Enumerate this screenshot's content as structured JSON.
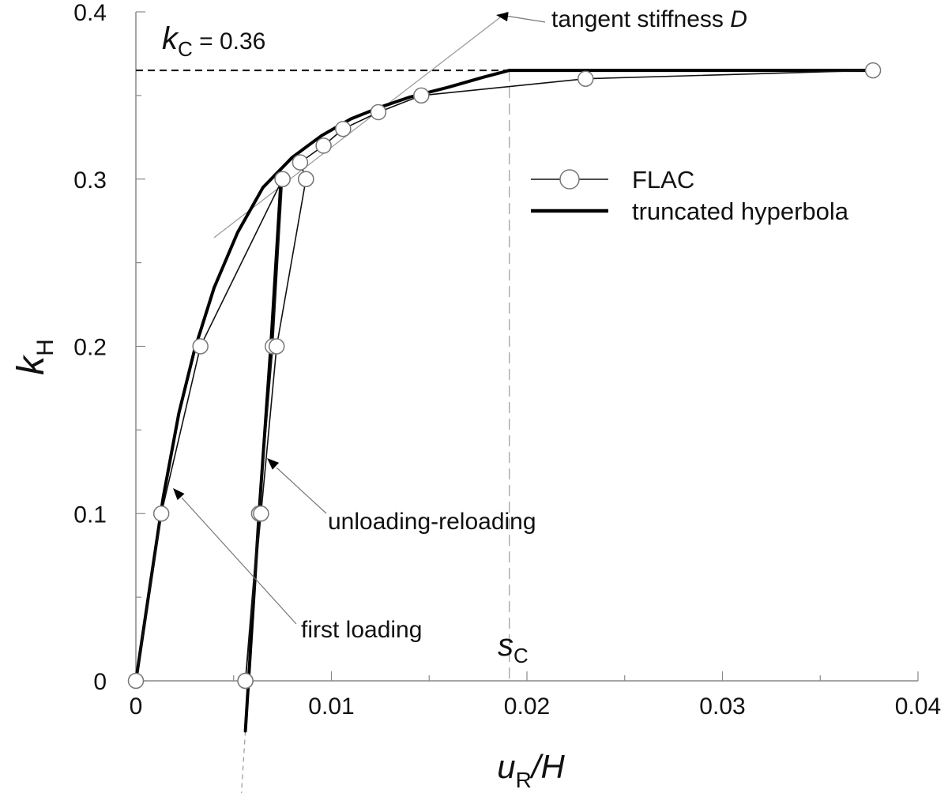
{
  "chart_data": {
    "type": "line",
    "xlabel": {
      "main": "u",
      "sub": "R",
      "rest": "/H"
    },
    "ylabel": {
      "main": "k",
      "sub": "H"
    },
    "xlim": [
      0,
      0.04
    ],
    "ylim": [
      0,
      0.4
    ],
    "x_ticks": [
      "0",
      "0.01",
      "0.02",
      "0.03",
      "0.04"
    ],
    "y_ticks": [
      "0",
      "0.1",
      "0.2",
      "0.3",
      "0.4"
    ],
    "x_tick_values": [
      0,
      0.01,
      0.02,
      0.03,
      0.04
    ],
    "y_tick_values": [
      0,
      0.1,
      0.2,
      0.3,
      0.4
    ],
    "grid": false,
    "legend_position": "right",
    "series": [
      {
        "name": "FLAC",
        "style": "thin-line-circle-markers",
        "segments": [
          {
            "x": [
              0,
              0.0013,
              0.0033,
              0.0075
            ],
            "y": [
              0,
              0.1,
              0.2,
              0.3
            ]
          },
          {
            "x": [
              0.0075,
              0.007,
              0.0063,
              0.0056
            ],
            "y": [
              0.3,
              0.2,
              0.1,
              0
            ]
          },
          {
            "x": [
              0.0056,
              0.0064,
              0.0072,
              0.0087
            ],
            "y": [
              0,
              0.1,
              0.2,
              0.3
            ]
          },
          {
            "x": [
              0.0087,
              0.0084,
              0.0096,
              0.0106,
              0.0124,
              0.0146,
              0.023,
              0.0377
            ],
            "y": [
              0.3,
              0.31,
              0.32,
              0.33,
              0.34,
              0.35,
              0.36,
              0.365
            ]
          }
        ]
      },
      {
        "name": "truncated hyperbola",
        "style": "thick-line",
        "segments": [
          {
            "x": [
              0,
              0.0007,
              0.0014,
              0.0022,
              0.003,
              0.004,
              0.0052,
              0.0065,
              0.008,
              0.0095,
              0.011,
              0.0125,
              0.014,
              0.016,
              0.0178,
              0.0191,
              0.0377
            ],
            "y": [
              0,
              0.055,
              0.11,
              0.16,
              0.198,
              0.235,
              0.268,
              0.295,
              0.313,
              0.326,
              0.336,
              0.343,
              0.349,
              0.355,
              0.361,
              0.365,
              0.365
            ]
          },
          {
            "x": [
              0.0056,
              0.0063,
              0.0069,
              0.0074
            ],
            "y": [
              -0.03,
              0.1,
              0.2,
              0.295
            ]
          }
        ]
      }
    ],
    "reference_lines": {
      "kc": {
        "y": 0.365,
        "x_from": 0,
        "x_to": 0.0191
      },
      "sc": {
        "x": 0.0191,
        "y_from": 0,
        "y_to": 0.365
      },
      "unload_extension": {
        "x_from": 0.0056,
        "y_from": -0.03,
        "x_to": 0.0053,
        "y_to": -0.085
      },
      "tangent": {
        "x_from": 0.004,
        "y_from": 0.265,
        "x_to": 0.019,
        "y_to": 0.4
      }
    },
    "annotations": {
      "kc": {
        "main": "k",
        "sub": "C",
        "rest": " = 0.36"
      },
      "sc": {
        "main": "s",
        "sub": "C"
      },
      "tangent": {
        "text": "tangent stiffness ",
        "italic": "D"
      },
      "unloading": "unloading-reloading",
      "first_loading": "first loading"
    },
    "legend": [
      {
        "label": "FLAC",
        "style": "thin-line-circle"
      },
      {
        "label": "truncated hyperbola",
        "style": "thick-line"
      }
    ]
  }
}
